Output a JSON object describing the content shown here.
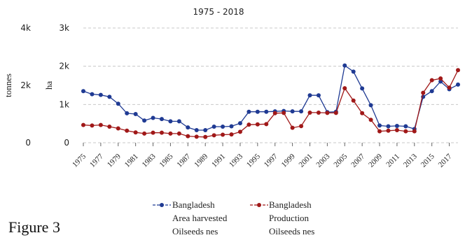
{
  "chart_data": {
    "type": "line",
    "title": "",
    "subtitle": "1975 - 2018",
    "figure_caption": "Figure 3",
    "y_left_axis": {
      "label": "tonnes",
      "range": [
        0,
        4000
      ],
      "tick_labels": [
        "0",
        "2k",
        "4k"
      ]
    },
    "y_right_axis": {
      "label": "ha",
      "range": [
        0,
        3000
      ],
      "tick_labels": [
        "0",
        "1k",
        "2k",
        "3k"
      ]
    },
    "x_tick_labels": [
      "1975",
      "1977",
      "1979",
      "1981",
      "1983",
      "1985",
      "1987",
      "1989",
      "1991",
      "1993",
      "1995",
      "1997",
      "1999",
      "2001",
      "2003",
      "2005",
      "2007",
      "2009",
      "2011",
      "2013",
      "2015",
      "2017"
    ],
    "grid": true,
    "legend_position": "bottom",
    "x": [
      1975,
      1976,
      1977,
      1978,
      1979,
      1980,
      1981,
      1982,
      1983,
      1984,
      1985,
      1986,
      1987,
      1988,
      1989,
      1990,
      1991,
      1992,
      1993,
      1994,
      1995,
      1996,
      1997,
      1998,
      1999,
      2000,
      2001,
      2002,
      2003,
      2004,
      2005,
      2006,
      2007,
      2008,
      2009,
      2010,
      2011,
      2012,
      2013,
      2014,
      2015,
      2016,
      2017,
      2018
    ],
    "series": [
      {
        "name_lines": [
          "Bangladesh",
          "Area harvested",
          "Oilseeds nes"
        ],
        "axis": "right",
        "color": "#1f3a93",
        "unit": "ha",
        "values": [
          1350,
          1270,
          1250,
          1200,
          1020,
          770,
          750,
          580,
          650,
          620,
          560,
          560,
          400,
          330,
          330,
          420,
          420,
          430,
          510,
          810,
          810,
          810,
          820,
          830,
          820,
          820,
          1240,
          1240,
          800,
          810,
          2020,
          1860,
          1420,
          980,
          450,
          430,
          440,
          430,
          360,
          1200,
          1350,
          1600,
          1400,
          1520
        ]
      },
      {
        "name_lines": [
          "Bangladesh",
          "Production",
          "Oilseeds nes"
        ],
        "axis": "left",
        "color": "#a01818",
        "unit": "tonnes",
        "values": [
          620,
          600,
          620,
          560,
          500,
          420,
          360,
          320,
          350,
          350,
          320,
          320,
          230,
          210,
          200,
          260,
          280,
          290,
          380,
          630,
          640,
          650,
          1030,
          1040,
          520,
          580,
          1050,
          1050,
          1040,
          1040,
          1900,
          1470,
          1030,
          800,
          400,
          420,
          440,
          400,
          400,
          1740,
          2180,
          2240,
          1920,
          2530
        ]
      }
    ]
  }
}
